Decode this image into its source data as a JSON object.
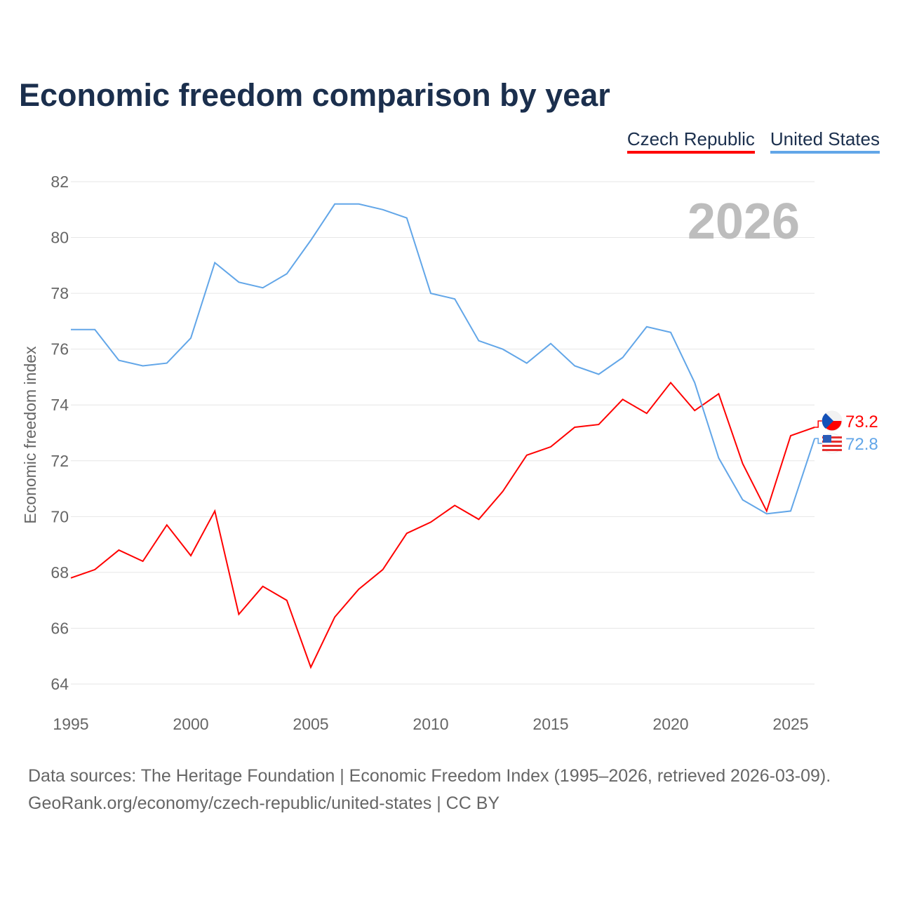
{
  "chart_data": {
    "type": "line",
    "title": "Economic freedom comparison by year",
    "xlabel": "",
    "ylabel": "Economic freedom index",
    "ylim": [
      64,
      82
    ],
    "xlim": [
      1995,
      2026
    ],
    "yticks": [
      64,
      66,
      68,
      70,
      72,
      74,
      76,
      78,
      80,
      82
    ],
    "xticks": [
      1995,
      2000,
      2005,
      2010,
      2015,
      2020,
      2025
    ],
    "watermark_year": "2026",
    "x": [
      1995,
      1996,
      1997,
      1998,
      1999,
      2000,
      2001,
      2002,
      2003,
      2004,
      2005,
      2006,
      2007,
      2008,
      2009,
      2010,
      2011,
      2012,
      2013,
      2014,
      2015,
      2016,
      2017,
      2018,
      2019,
      2020,
      2021,
      2022,
      2023,
      2024,
      2025,
      2026
    ],
    "series": [
      {
        "name": "Czech Republic",
        "color": "#ff0000",
        "end_label": "73.2",
        "values": [
          67.8,
          68.1,
          68.8,
          68.4,
          69.7,
          68.6,
          70.2,
          66.5,
          67.5,
          67.0,
          64.6,
          66.4,
          67.4,
          68.1,
          69.4,
          69.8,
          70.4,
          69.9,
          70.9,
          72.2,
          72.5,
          73.2,
          73.3,
          74.2,
          73.7,
          74.8,
          73.8,
          74.4,
          71.9,
          70.2,
          72.9,
          73.2
        ]
      },
      {
        "name": "United States",
        "color": "#62a6e8",
        "end_label": "72.8",
        "values": [
          76.7,
          76.7,
          75.6,
          75.4,
          75.5,
          76.4,
          79.1,
          78.4,
          78.2,
          78.7,
          79.9,
          81.2,
          81.2,
          81.0,
          80.7,
          78.0,
          77.8,
          76.3,
          76.0,
          75.5,
          76.2,
          75.4,
          75.1,
          75.7,
          76.8,
          76.6,
          74.8,
          72.1,
          70.6,
          70.1,
          70.2,
          72.8
        ]
      }
    ],
    "legend_position": "top-right",
    "grid": true
  },
  "footer": {
    "line1": "Data sources: The Heritage Foundation | Economic Freedom Index (1995–2026, retrieved 2026-03-09).",
    "line2": "GeoRank.org/economy/czech-republic/united-states | CC BY"
  }
}
